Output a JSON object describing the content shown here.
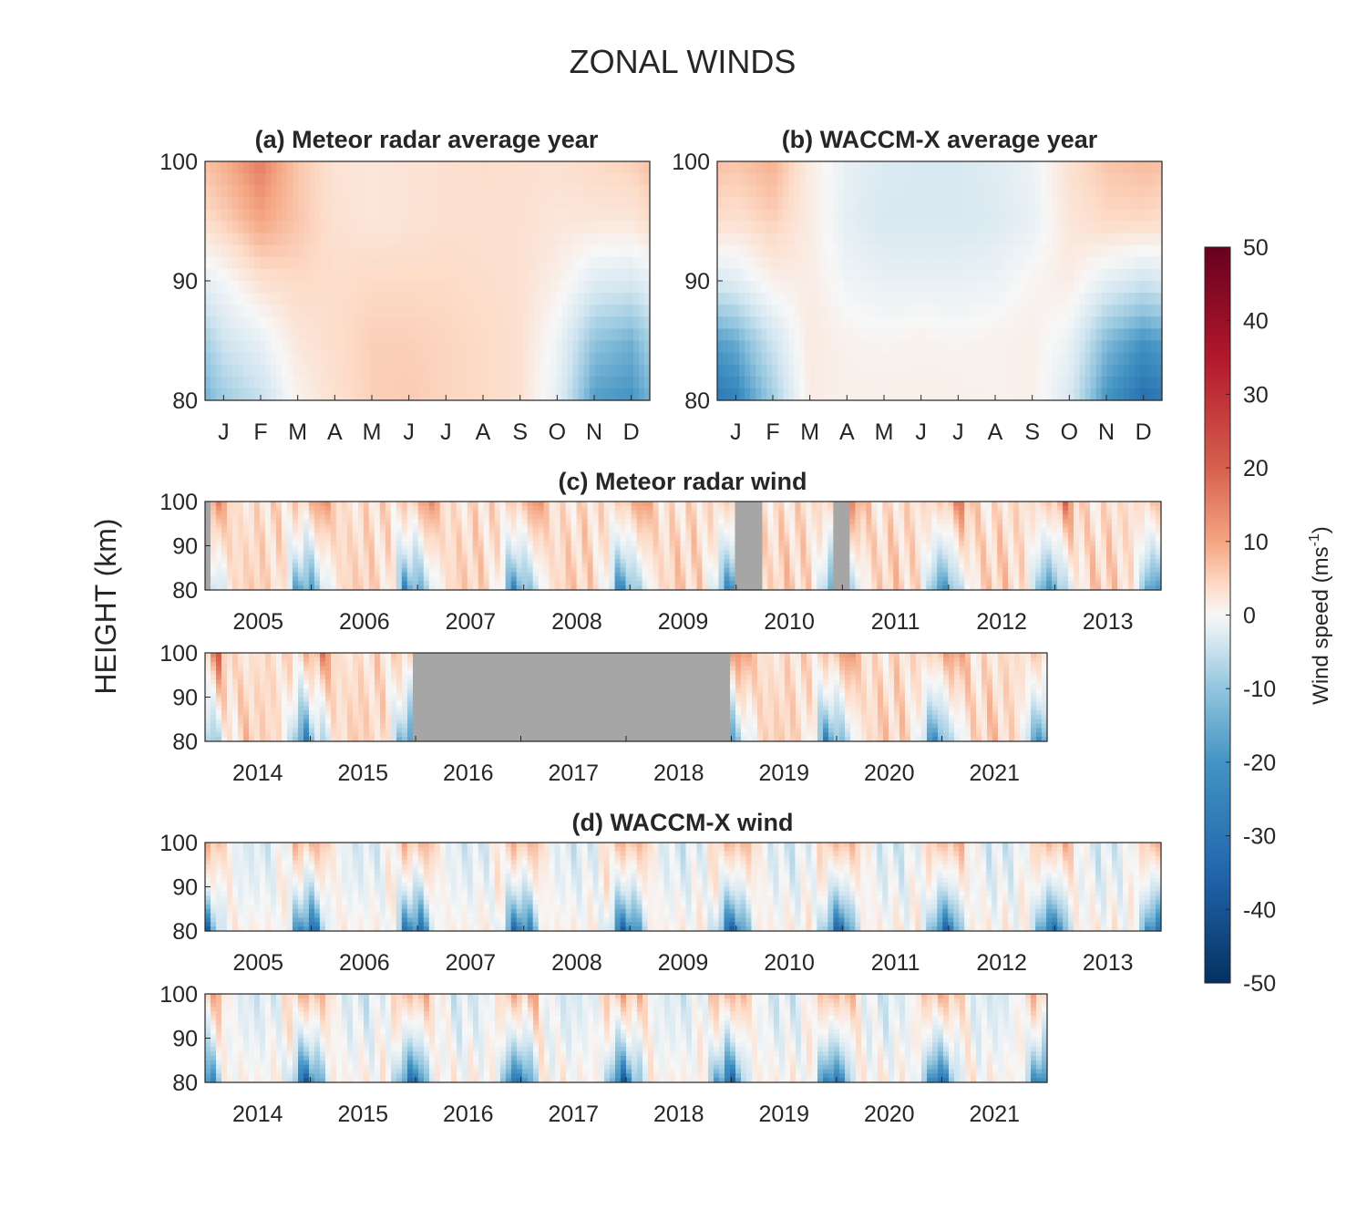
{
  "figure": {
    "title": "ZONAL WINDS",
    "ylabel": "HEIGHT (km)"
  },
  "colorbar": {
    "label": "Wind speed (ms",
    "label_sup": "-1",
    "label_end": ")",
    "ticks": [
      50,
      40,
      30,
      20,
      10,
      0,
      -10,
      -20,
      -30,
      -40,
      -50
    ],
    "range": [
      -50,
      50
    ],
    "colors": {
      "max": "#67001f",
      "high": "#d6604d",
      "mid_high": "#f4a582",
      "zero": "#f7f7f7",
      "mid_low": "#92c5de",
      "low": "#2166ac",
      "min": "#053061"
    }
  },
  "gap_color": "#a6a6a6",
  "chart_data": [
    {
      "id": "a",
      "type": "heatmap",
      "title": "(a) Meteor radar average year",
      "x": [
        "J",
        "F",
        "M",
        "A",
        "M",
        "J",
        "J",
        "A",
        "S",
        "O",
        "N",
        "D"
      ],
      "y": [
        80,
        85,
        90,
        95,
        100
      ],
      "ylim": [
        80,
        100
      ],
      "yticks": [
        100,
        90,
        80
      ],
      "z": [
        [
          -18,
          -12,
          2,
          8,
          12,
          13,
          11,
          10,
          8,
          -5,
          -28,
          -30
        ],
        [
          -10,
          -4,
          6,
          9,
          12,
          12,
          11,
          10,
          8,
          -2,
          -20,
          -24
        ],
        [
          -1,
          8,
          10,
          9,
          10,
          10,
          10,
          9,
          8,
          3,
          -6,
          -8
        ],
        [
          12,
          20,
          14,
          8,
          6,
          7,
          8,
          8,
          8,
          6,
          6,
          6
        ],
        [
          18,
          26,
          14,
          7,
          6,
          7,
          8,
          9,
          8,
          8,
          10,
          12
        ]
      ]
    },
    {
      "id": "b",
      "type": "heatmap",
      "title": "(b) WACCM-X average year",
      "x": [
        "J",
        "F",
        "M",
        "A",
        "M",
        "J",
        "J",
        "A",
        "S",
        "O",
        "N",
        "D"
      ],
      "y": [
        80,
        85,
        90,
        95,
        100
      ],
      "ylim": [
        80,
        100
      ],
      "yticks": [
        100,
        90,
        80
      ],
      "z": [
        [
          -34,
          -18,
          4,
          3,
          3,
          3,
          3,
          2,
          3,
          -8,
          -30,
          -38
        ],
        [
          -25,
          -10,
          5,
          2,
          1,
          2,
          1,
          2,
          3,
          -3,
          -22,
          -30
        ],
        [
          -6,
          3,
          4,
          -2,
          -4,
          -4,
          -4,
          -3,
          1,
          4,
          -5,
          -10
        ],
        [
          8,
          12,
          4,
          -5,
          -8,
          -8,
          -8,
          -7,
          -4,
          6,
          10,
          10
        ],
        [
          14,
          18,
          4,
          -4,
          -7,
          -8,
          -8,
          -6,
          -3,
          8,
          14,
          16
        ]
      ]
    },
    {
      "id": "c",
      "type": "heatmap",
      "title": "(c) Meteor radar wind",
      "rows": [
        {
          "years": [
            "2005",
            "2006",
            "2007",
            "2008",
            "2009",
            "2010",
            "2011",
            "2012",
            "2013"
          ],
          "ylim": [
            80,
            100
          ],
          "yticks": [
            100,
            90,
            80
          ],
          "data_gaps": [
            [
              2005.0,
              2005.04
            ],
            [
              2010.0,
              2010.22
            ],
            [
              2010.94,
              2011.09
            ]
          ]
        },
        {
          "years": [
            "2014",
            "2015",
            "2016",
            "2017",
            "2018",
            "2019",
            "2020",
            "2021"
          ],
          "ylim": [
            80,
            100
          ],
          "yticks": [
            100,
            90,
            80
          ],
          "data_gaps": [
            [
              2015.95,
              2019.0
            ]
          ]
        }
      ],
      "seasonal_cycle_m_s": {
        "months": [
          "J",
          "F",
          "M",
          "A",
          "M",
          "J",
          "J",
          "A",
          "S",
          "O",
          "N",
          "D"
        ],
        "height_km": [
          80,
          90,
          100
        ],
        "z": [
          [
            -18,
            -12,
            2,
            8,
            12,
            13,
            11,
            10,
            8,
            -5,
            -28,
            -30
          ],
          [
            -1,
            8,
            10,
            9,
            10,
            10,
            10,
            9,
            8,
            3,
            -6,
            -8
          ],
          [
            18,
            26,
            14,
            7,
            6,
            7,
            8,
            9,
            8,
            8,
            10,
            12
          ]
        ]
      }
    },
    {
      "id": "d",
      "type": "heatmap",
      "title": "(d) WACCM-X wind",
      "rows": [
        {
          "years": [
            "2005",
            "2006",
            "2007",
            "2008",
            "2009",
            "2010",
            "2011",
            "2012",
            "2013"
          ],
          "ylim": [
            80,
            100
          ],
          "yticks": [
            100,
            90,
            80
          ]
        },
        {
          "years": [
            "2014",
            "2015",
            "2016",
            "2017",
            "2018",
            "2019",
            "2020",
            "2021"
          ],
          "ylim": [
            80,
            100
          ],
          "yticks": [
            100,
            90,
            80
          ]
        }
      ],
      "seasonal_cycle_m_s": {
        "months": [
          "J",
          "F",
          "M",
          "A",
          "M",
          "J",
          "J",
          "A",
          "S",
          "O",
          "N",
          "D"
        ],
        "height_km": [
          80,
          90,
          100
        ],
        "z": [
          [
            -34,
            -18,
            4,
            3,
            3,
            3,
            3,
            2,
            3,
            -8,
            -30,
            -38
          ],
          [
            -6,
            3,
            4,
            -2,
            -4,
            -4,
            -4,
            -3,
            1,
            4,
            -5,
            -10
          ],
          [
            14,
            18,
            4,
            -4,
            -7,
            -8,
            -8,
            -6,
            -3,
            8,
            14,
            16
          ]
        ]
      }
    }
  ]
}
